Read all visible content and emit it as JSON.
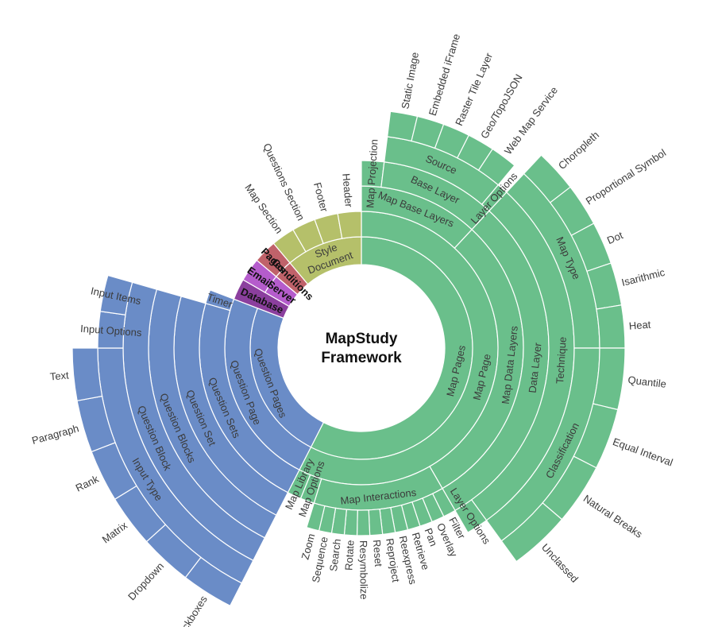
{
  "title": {
    "line1": "MapStudy",
    "line2": "Framework"
  },
  "colors": {
    "map": "#6abf8b",
    "question": "#6a8cc7",
    "config_dark": "#8b3f9e",
    "config_light": "#b55ccc",
    "pages": "#c0626a",
    "document": "#b5c06a"
  },
  "chart_data": {
    "type": "sunburst",
    "groups": [
      {
        "label": "Map Pages",
        "color": "map",
        "children": [
          {
            "label": "Map Page",
            "children": [
              {
                "label": "Map Base Layers",
                "children": [
                  {
                    "label": "Map Projection"
                  },
                  {
                    "label": "Base Layer",
                    "children": [
                      {
                        "label": "Source",
                        "children": [
                          {
                            "label": "Static Image"
                          },
                          {
                            "label": "Embedded iFrame"
                          },
                          {
                            "label": "Raster Tile Layer"
                          },
                          {
                            "label": "Geo/TopoJSON"
                          },
                          {
                            "label": "Web Map Service"
                          }
                        ]
                      },
                      {
                        "label": "Layer Options"
                      }
                    ]
                  }
                ]
              },
              {
                "label": "Map Data Layers",
                "children": [
                  {
                    "label": "Data Layer",
                    "children": [
                      {
                        "label": "Technique",
                        "children": [
                          {
                            "label": "Map Type",
                            "children": [
                              {
                                "label": "Choropleth"
                              },
                              {
                                "label": "Proportional Symbol"
                              },
                              {
                                "label": "Dot"
                              },
                              {
                                "label": "Isarithmic"
                              },
                              {
                                "label": "Heat"
                              }
                            ]
                          },
                          {
                            "label": "Classification",
                            "children": [
                              {
                                "label": "Quantile"
                              },
                              {
                                "label": "Equal Interval"
                              },
                              {
                                "label": "Natural Breaks"
                              },
                              {
                                "label": "Unclassed"
                              }
                            ]
                          }
                        ]
                      },
                      {
                        "label": "Layer Options"
                      }
                    ]
                  }
                ]
              },
              {
                "label": "Map Interactions",
                "children": [
                  {
                    "label": "Filter"
                  },
                  {
                    "label": "Overlay"
                  },
                  {
                    "label": "Pan"
                  },
                  {
                    "label": "Retrieve"
                  },
                  {
                    "label": "Reexpress"
                  },
                  {
                    "label": "Reproject"
                  },
                  {
                    "label": "Reset"
                  },
                  {
                    "label": "Resymbolize"
                  },
                  {
                    "label": "Rotate"
                  },
                  {
                    "label": "Search"
                  },
                  {
                    "label": "Sequence"
                  },
                  {
                    "label": "Zoom"
                  }
                ]
              },
              {
                "label": "Map Options"
              },
              {
                "label": "Map Library"
              }
            ]
          }
        ]
      },
      {
        "label": "Question Pages",
        "color": "question",
        "children": [
          {
            "label": "Question Page",
            "children": [
              {
                "label": "Question Sets",
                "children": [
                  {
                    "label": "Question Set",
                    "children": [
                      {
                        "label": "Question Blocks",
                        "children": [
                          {
                            "label": "Question Block",
                            "children": [
                              {
                                "label": "Input Type",
                                "children": [
                                  {
                                    "label": "Checkboxes"
                                  },
                                  {
                                    "label": "Dropdown"
                                  },
                                  {
                                    "label": "Matrix"
                                  },
                                  {
                                    "label": "Rank"
                                  },
                                  {
                                    "label": "Paragraph"
                                  },
                                  {
                                    "label": "Text"
                                  }
                                ]
                              },
                              {
                                "label": "Input Options"
                              },
                              {
                                "label": "Input Items"
                              }
                            ]
                          }
                        ]
                      }
                    ]
                  }
                ]
              },
              {
                "label": "Timer"
              }
            ]
          }
        ]
      },
      {
        "label": "Database",
        "color": "config_dark"
      },
      {
        "label": "Server",
        "color": "config_light",
        "children": [
          {
            "label": "Email"
          }
        ]
      },
      {
        "label": "Conditions",
        "color": "pages",
        "children": [
          {
            "label": "Pages"
          }
        ]
      },
      {
        "label": "Document Style",
        "color": "document",
        "children": [
          {
            "label": "Map Section"
          },
          {
            "label": "Questions Section"
          },
          {
            "label": "Footer"
          },
          {
            "label": "Header"
          }
        ]
      }
    ]
  }
}
